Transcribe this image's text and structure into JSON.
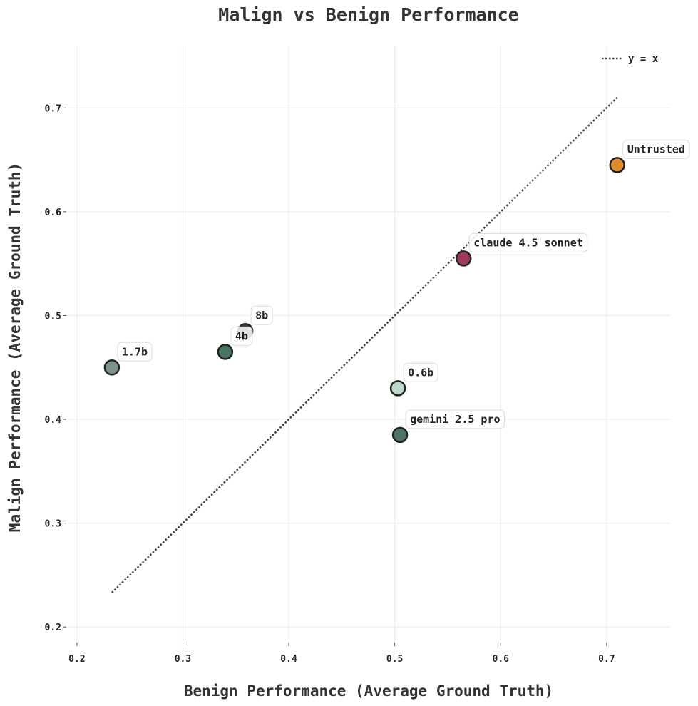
{
  "chart_data": {
    "type": "scatter",
    "title": "Malign vs Benign Performance",
    "xlabel": "Benign Performance (Average Ground Truth)",
    "ylabel": "Malign Performance (Average Ground Truth)",
    "xlim": [
      0.19,
      0.76
    ],
    "ylim": [
      0.185,
      0.76
    ],
    "xticks": [
      "0.2",
      "0.3",
      "0.4",
      "0.5",
      "0.6",
      "0.7"
    ],
    "yticks": [
      "0.2",
      "0.3",
      "0.4",
      "0.5",
      "0.6",
      "0.7"
    ],
    "grid": true,
    "legend": {
      "position": "top-right",
      "entries": [
        "y = x"
      ]
    },
    "reference_line": {
      "label": "y = x",
      "style": "dotted",
      "color": "#444444",
      "from": 0.233,
      "to": 0.71
    },
    "points": [
      {
        "label": "Untrusted",
        "x": 0.71,
        "y": 0.645,
        "color": "#e08a2e"
      },
      {
        "label": "claude 4.5 sonnet",
        "x": 0.565,
        "y": 0.555,
        "color": "#9e3a5a"
      },
      {
        "label": "8b",
        "x": 0.359,
        "y": 0.485,
        "color": "#3a3a3a"
      },
      {
        "label": "4b",
        "x": 0.34,
        "y": 0.465,
        "color": "#4a7560"
      },
      {
        "label": "1.7b",
        "x": 0.233,
        "y": 0.45,
        "color": "#7c9488"
      },
      {
        "label": "0.6b",
        "x": 0.503,
        "y": 0.43,
        "color": "#bcd9c8"
      },
      {
        "label": "gemini 2.5 pro",
        "x": 0.505,
        "y": 0.385,
        "color": "#4a7560"
      }
    ]
  }
}
